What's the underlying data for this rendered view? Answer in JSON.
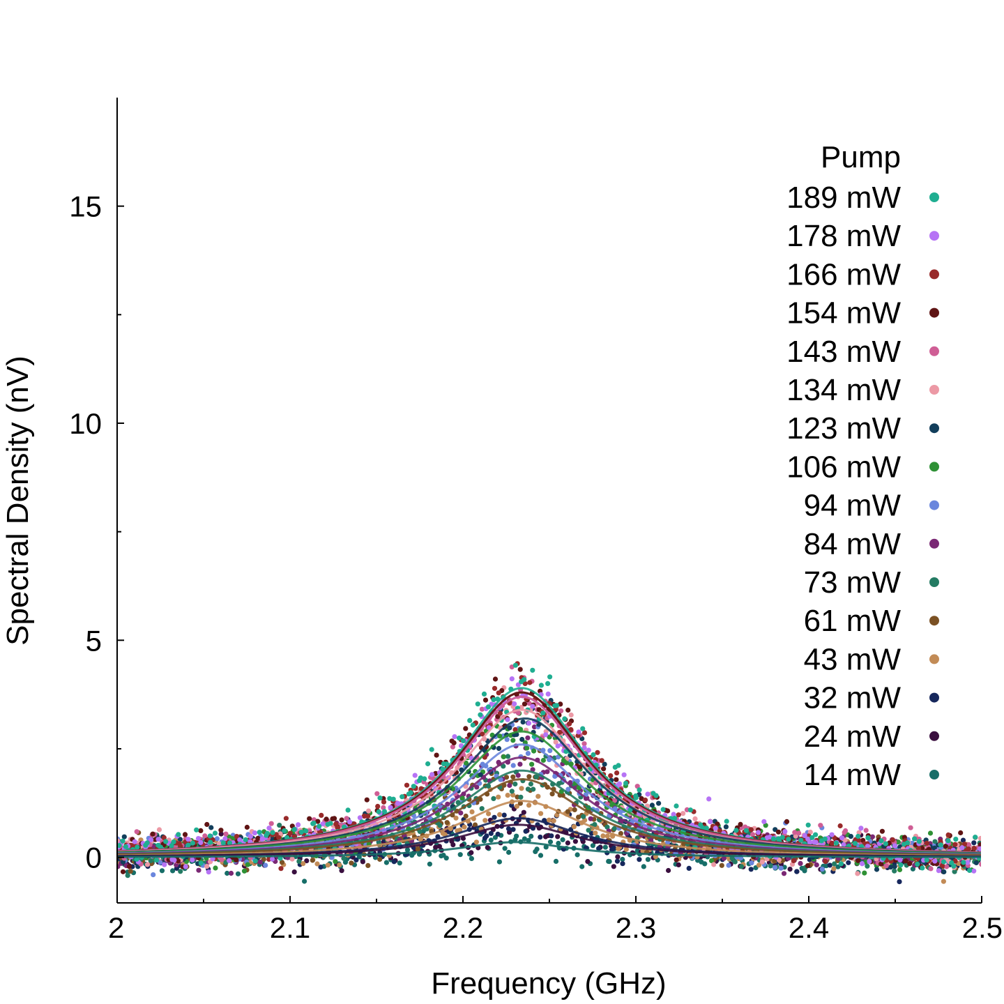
{
  "chart_data": {
    "type": "scatter",
    "title": "",
    "xlabel": "Frequency (GHz)",
    "ylabel": "Spectral Density (nV)",
    "xlim": [
      2.0,
      2.5
    ],
    "ylim": [
      -1.05,
      17.5
    ],
    "xticks": [
      2.0,
      2.1,
      2.2,
      2.3,
      2.4,
      2.5
    ],
    "xtick_labels": [
      "2",
      "2.1",
      "2.2",
      "2.3",
      "2.4",
      "2.5"
    ],
    "yticks": [
      0,
      5,
      10,
      15
    ],
    "ytick_labels": [
      "0",
      "5",
      "10",
      "15"
    ],
    "yminor_ticks": [
      2.5,
      7.5,
      12.5
    ],
    "xminor_ticks": [
      2.05,
      2.15,
      2.25,
      2.35,
      2.45
    ],
    "grid": false,
    "legend": {
      "title": "Pump",
      "placement": "top-right"
    },
    "series": [
      {
        "name": "189 mW",
        "color": "#1fae91",
        "peak": 3.9,
        "center": 2.234,
        "hwhm": 0.046
      },
      {
        "name": "178 mW",
        "color": "#b673f5",
        "peak": 3.7,
        "center": 2.234,
        "hwhm": 0.046
      },
      {
        "name": "166 mW",
        "color": "#982a2a",
        "peak": 3.8,
        "center": 2.234,
        "hwhm": 0.046
      },
      {
        "name": "154 mW",
        "color": "#5f1414",
        "peak": 3.8,
        "center": 2.234,
        "hwhm": 0.046
      },
      {
        "name": "143 mW",
        "color": "#cf5e95",
        "peak": 3.7,
        "center": 2.234,
        "hwhm": 0.046
      },
      {
        "name": "134 mW",
        "color": "#ec99a5",
        "peak": 3.4,
        "center": 2.234,
        "hwhm": 0.046
      },
      {
        "name": "123 mW",
        "color": "#123e5b",
        "peak": 3.2,
        "center": 2.236,
        "hwhm": 0.046
      },
      {
        "name": "106 mW",
        "color": "#2e9135",
        "peak": 2.9,
        "center": 2.234,
        "hwhm": 0.046
      },
      {
        "name": "94 mW",
        "color": "#6a86dd",
        "peak": 2.6,
        "center": 2.234,
        "hwhm": 0.045
      },
      {
        "name": "84 mW",
        "color": "#7a2874",
        "peak": 2.3,
        "center": 2.234,
        "hwhm": 0.045
      },
      {
        "name": "73 mW",
        "color": "#247b63",
        "peak": 2.0,
        "center": 2.234,
        "hwhm": 0.045
      },
      {
        "name": "61 mW",
        "color": "#7b5124",
        "peak": 1.8,
        "center": 2.234,
        "hwhm": 0.045
      },
      {
        "name": "43 mW",
        "color": "#c28b56",
        "peak": 1.3,
        "center": 2.234,
        "hwhm": 0.044
      },
      {
        "name": "32 mW",
        "color": "#16275c",
        "peak": 0.9,
        "center": 2.232,
        "hwhm": 0.044
      },
      {
        "name": "24 mW",
        "color": "#3a0f3f",
        "peak": 0.75,
        "center": 2.232,
        "hwhm": 0.044
      },
      {
        "name": "14 mW",
        "color": "#176e68",
        "peak": 0.35,
        "center": 2.23,
        "hwhm": 0.04
      }
    ]
  }
}
